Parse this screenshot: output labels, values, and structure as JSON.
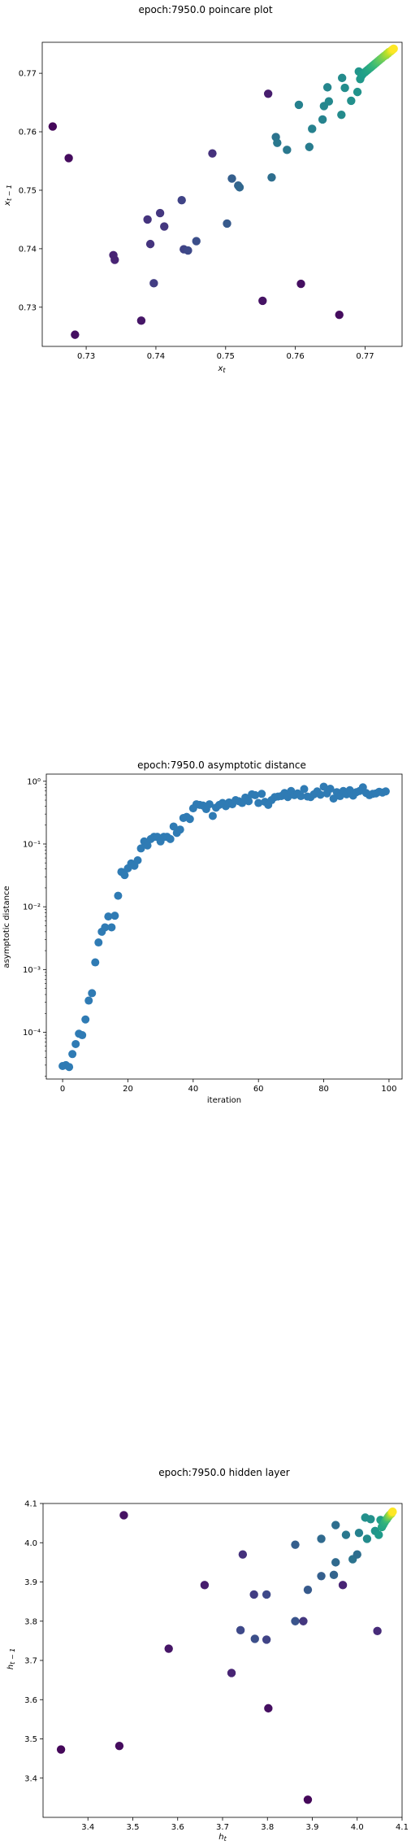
{
  "chart_data": [
    {
      "type": "scatter",
      "title": "epoch:7950.0 poincare plot",
      "xlabel": "x_t",
      "ylabel": "x_{t-1}",
      "xlim": [
        0.7237,
        0.7753
      ],
      "ylim": [
        0.7233,
        0.7753
      ],
      "xticks": [
        0.73,
        0.74,
        0.75,
        0.76,
        0.77
      ],
      "yticks": [
        0.73,
        0.74,
        0.75,
        0.76,
        0.77
      ],
      "xtick_labels": [
        "0.73",
        "0.74",
        "0.75",
        "0.76",
        "0.77"
      ],
      "ytick_labels": [
        "0.73",
        "0.74",
        "0.75",
        "0.76",
        "0.77"
      ],
      "colormap": "viridis",
      "points": [
        [
          0.7252,
          0.7609,
          0.02
        ],
        [
          0.7275,
          0.7555,
          0.03
        ],
        [
          0.7284,
          0.7253,
          0.04
        ],
        [
          0.7339,
          0.7389,
          0.1
        ],
        [
          0.7341,
          0.7381,
          0.1
        ],
        [
          0.7379,
          0.7277,
          0.06
        ],
        [
          0.7388,
          0.745,
          0.15
        ],
        [
          0.7392,
          0.7408,
          0.15
        ],
        [
          0.7397,
          0.7341,
          0.18
        ],
        [
          0.7406,
          0.7461,
          0.16
        ],
        [
          0.7412,
          0.7438,
          0.16
        ],
        [
          0.7437,
          0.7483,
          0.2
        ],
        [
          0.744,
          0.7399,
          0.2
        ],
        [
          0.7446,
          0.7397,
          0.22
        ],
        [
          0.7458,
          0.7413,
          0.24
        ],
        [
          0.7481,
          0.7563,
          0.14
        ],
        [
          0.7502,
          0.7443,
          0.28
        ],
        [
          0.7509,
          0.752,
          0.3
        ],
        [
          0.7518,
          0.7508,
          0.32
        ],
        [
          0.752,
          0.7505,
          0.33
        ],
        [
          0.7553,
          0.7311,
          0.05
        ],
        [
          0.7561,
          0.7665,
          0.08
        ],
        [
          0.7566,
          0.7522,
          0.36
        ],
        [
          0.7572,
          0.7591,
          0.38
        ],
        [
          0.7574,
          0.7581,
          0.4
        ],
        [
          0.7588,
          0.7569,
          0.4
        ],
        [
          0.7605,
          0.7646,
          0.44
        ],
        [
          0.7608,
          0.734,
          0.04
        ],
        [
          0.762,
          0.7574,
          0.42
        ],
        [
          0.7624,
          0.7605,
          0.44
        ],
        [
          0.7639,
          0.7621,
          0.45
        ],
        [
          0.7641,
          0.7644,
          0.46
        ],
        [
          0.7646,
          0.7676,
          0.46
        ],
        [
          0.7648,
          0.7652,
          0.47
        ],
        [
          0.7663,
          0.7287,
          0.03
        ],
        [
          0.7666,
          0.7629,
          0.48
        ],
        [
          0.7667,
          0.7692,
          0.48
        ],
        [
          0.7671,
          0.7675,
          0.49
        ],
        [
          0.768,
          0.7653,
          0.5
        ],
        [
          0.7689,
          0.7668,
          0.51
        ],
        [
          0.7691,
          0.7703,
          0.52
        ],
        [
          0.7693,
          0.769,
          0.53
        ],
        [
          0.7695,
          0.7696,
          0.54
        ],
        [
          0.7697,
          0.7699,
          0.55
        ],
        [
          0.77,
          0.7702,
          0.56
        ],
        [
          0.7702,
          0.7704,
          0.57
        ],
        [
          0.7704,
          0.7706,
          0.58
        ],
        [
          0.7706,
          0.7708,
          0.59
        ],
        [
          0.7708,
          0.771,
          0.61
        ],
        [
          0.771,
          0.7712,
          0.63
        ],
        [
          0.7712,
          0.7714,
          0.65
        ],
        [
          0.7714,
          0.7716,
          0.67
        ],
        [
          0.7716,
          0.7718,
          0.69
        ],
        [
          0.7718,
          0.772,
          0.71
        ],
        [
          0.772,
          0.7722,
          0.73
        ],
        [
          0.7722,
          0.7724,
          0.75
        ],
        [
          0.7724,
          0.7726,
          0.77
        ],
        [
          0.7726,
          0.7728,
          0.79
        ],
        [
          0.7728,
          0.773,
          0.81
        ],
        [
          0.773,
          0.7731,
          0.83
        ],
        [
          0.7731,
          0.7733,
          0.85
        ],
        [
          0.7733,
          0.7734,
          0.87
        ],
        [
          0.7734,
          0.7736,
          0.89
        ],
        [
          0.7736,
          0.7737,
          0.91
        ],
        [
          0.7737,
          0.7738,
          0.93
        ],
        [
          0.7738,
          0.7739,
          0.95
        ],
        [
          0.7739,
          0.774,
          0.97
        ],
        [
          0.774,
          0.7741,
          0.99
        ],
        [
          0.7741,
          0.7742,
          1.0
        ]
      ]
    },
    {
      "type": "scatter",
      "title": "epoch:7950.0 asymptotic distance",
      "xlabel": "iteration",
      "ylabel": "asymptotic distance",
      "yscale": "log",
      "xlim": [
        -5,
        104
      ],
      "ylim": [
        1.8e-05,
        1.3
      ],
      "xticks": [
        0,
        20,
        40,
        60,
        80,
        100
      ],
      "xtick_labels": [
        "0",
        "20",
        "40",
        "60",
        "80",
        "100"
      ],
      "yticks": [
        0.0001,
        0.001,
        0.01,
        0.1,
        1
      ],
      "ytick_labels": [
        "10⁻⁴",
        "10⁻³",
        "10⁻²",
        "10⁻¹",
        "10⁰"
      ],
      "color": "#2f7bb4",
      "x": [
        0,
        1,
        2,
        3,
        4,
        5,
        6,
        7,
        8,
        9,
        10,
        11,
        12,
        13,
        14,
        15,
        16,
        17,
        18,
        19,
        20,
        21,
        22,
        23,
        24,
        25,
        26,
        27,
        28,
        29,
        30,
        31,
        32,
        33,
        34,
        35,
        36,
        37,
        38,
        39,
        40,
        41,
        42,
        43,
        44,
        45,
        46,
        47,
        48,
        49,
        50,
        51,
        52,
        53,
        54,
        55,
        56,
        57,
        58,
        59,
        60,
        61,
        62,
        63,
        64,
        65,
        66,
        67,
        68,
        69,
        70,
        71,
        72,
        73,
        74,
        75,
        76,
        77,
        78,
        79,
        80,
        81,
        82,
        83,
        84,
        85,
        86,
        87,
        88,
        89,
        90,
        91,
        92,
        93,
        94,
        95,
        96,
        97,
        98,
        99
      ],
      "y": [
        2.9e-05,
        3e-05,
        2.8e-05,
        4.5e-05,
        6.5e-05,
        9.5e-05,
        9e-05,
        0.00016,
        0.00032,
        0.00042,
        0.0013,
        0.0027,
        0.004,
        0.0047,
        0.007,
        0.0047,
        0.0072,
        0.015,
        0.036,
        0.032,
        0.041,
        0.049,
        0.045,
        0.055,
        0.085,
        0.11,
        0.095,
        0.12,
        0.13,
        0.13,
        0.11,
        0.13,
        0.13,
        0.12,
        0.19,
        0.15,
        0.17,
        0.26,
        0.27,
        0.25,
        0.37,
        0.43,
        0.42,
        0.41,
        0.36,
        0.43,
        0.28,
        0.38,
        0.42,
        0.45,
        0.4,
        0.46,
        0.43,
        0.5,
        0.48,
        0.45,
        0.55,
        0.48,
        0.62,
        0.6,
        0.45,
        0.63,
        0.47,
        0.42,
        0.5,
        0.56,
        0.57,
        0.58,
        0.65,
        0.56,
        0.7,
        0.6,
        0.64,
        0.58,
        0.75,
        0.57,
        0.56,
        0.62,
        0.69,
        0.61,
        0.82,
        0.64,
        0.76,
        0.53,
        0.67,
        0.58,
        0.7,
        0.62,
        0.72,
        0.59,
        0.67,
        0.7,
        0.8,
        0.65,
        0.6,
        0.63,
        0.64,
        0.68,
        0.66,
        0.69
      ]
    },
    {
      "type": "scatter",
      "title": "epoch:7950.0 hidden layer",
      "xlabel": "h_t",
      "ylabel": "h_{t-1}",
      "xlim": [
        3.3,
        4.1
      ],
      "ylim": [
        3.3,
        4.1
      ],
      "xticks": [
        3.4,
        3.5,
        3.6,
        3.7,
        3.8,
        3.9,
        4.0,
        4.1
      ],
      "yticks": [
        3.4,
        3.5,
        3.6,
        3.7,
        3.8,
        3.9,
        4.0,
        4.1
      ],
      "xtick_labels": [
        "3.4",
        "3.5",
        "3.6",
        "3.7",
        "3.8",
        "3.9",
        "4.0",
        "4.1"
      ],
      "ytick_labels": [
        "3.4",
        "3.5",
        "3.6",
        "3.7",
        "3.8",
        "3.9",
        "4.0",
        "4.1"
      ],
      "colormap": "viridis",
      "points": [
        [
          3.34,
          3.473,
          0.02
        ],
        [
          3.47,
          3.482,
          0.03
        ],
        [
          3.48,
          4.07,
          0.05
        ],
        [
          3.58,
          3.73,
          0.06
        ],
        [
          3.66,
          3.892,
          0.08
        ],
        [
          3.72,
          3.668,
          0.1
        ],
        [
          3.74,
          3.777,
          0.22
        ],
        [
          3.745,
          3.97,
          0.14
        ],
        [
          3.77,
          3.868,
          0.18
        ],
        [
          3.772,
          3.755,
          0.24
        ],
        [
          3.798,
          3.868,
          0.22
        ],
        [
          3.798,
          3.753,
          0.2
        ],
        [
          3.802,
          3.578,
          0.04
        ],
        [
          3.862,
          3.8,
          0.26
        ],
        [
          3.862,
          3.995,
          0.3
        ],
        [
          3.88,
          3.8,
          0.16
        ],
        [
          3.89,
          3.345,
          0.02
        ],
        [
          3.89,
          3.88,
          0.28
        ],
        [
          3.92,
          4.01,
          0.34
        ],
        [
          3.92,
          3.915,
          0.3
        ],
        [
          3.948,
          3.918,
          0.32
        ],
        [
          3.952,
          4.045,
          0.36
        ],
        [
          3.952,
          3.95,
          0.34
        ],
        [
          3.968,
          3.892,
          0.1
        ],
        [
          3.975,
          4.02,
          0.4
        ],
        [
          3.99,
          3.958,
          0.38
        ],
        [
          4.0,
          3.97,
          0.36
        ],
        [
          4.004,
          4.025,
          0.44
        ],
        [
          4.018,
          4.064,
          0.5
        ],
        [
          4.022,
          4.01,
          0.48
        ],
        [
          4.03,
          4.06,
          0.5
        ],
        [
          4.04,
          4.03,
          0.52
        ],
        [
          4.045,
          3.775,
          0.12
        ],
        [
          4.048,
          4.02,
          0.54
        ],
        [
          4.052,
          4.058,
          0.56
        ],
        [
          4.055,
          4.04,
          0.58
        ],
        [
          4.058,
          4.046,
          0.6
        ],
        [
          4.061,
          4.052,
          0.62
        ],
        [
          4.063,
          4.056,
          0.64
        ],
        [
          4.066,
          4.06,
          0.68
        ],
        [
          4.068,
          4.064,
          0.72
        ],
        [
          4.07,
          4.067,
          0.76
        ],
        [
          4.072,
          4.07,
          0.8
        ],
        [
          4.074,
          4.072,
          0.84
        ],
        [
          4.076,
          4.074,
          0.88
        ],
        [
          4.077,
          4.076,
          0.92
        ],
        [
          4.078,
          4.078,
          0.96
        ],
        [
          4.079,
          4.079,
          1.0
        ]
      ]
    }
  ]
}
